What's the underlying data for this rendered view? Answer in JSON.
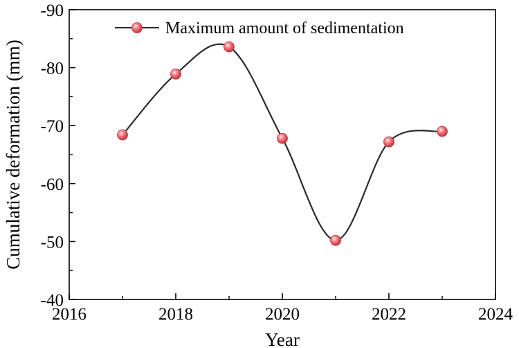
{
  "chart_data": {
    "type": "line",
    "title": "",
    "xlabel": "Year",
    "ylabel": "Cumulative deformation (mm)",
    "xlim": [
      2016,
      2024
    ],
    "ylim": [
      -40,
      -90
    ],
    "y_axis_inverted": true,
    "x_ticks": [
      2016,
      2018,
      2020,
      2022,
      2024
    ],
    "x_tick_labels": [
      "2016",
      "2018",
      "2020",
      "2022",
      "2024"
    ],
    "y_ticks": [
      -40,
      -50,
      -60,
      -70,
      -80,
      -90
    ],
    "y_tick_labels": [
      "-40",
      "-50",
      "-60",
      "-70",
      "-80",
      "-90"
    ],
    "grid": false,
    "legend_position": "top-center",
    "series": [
      {
        "name": "Maximum amount of sedimentation",
        "x": [
          2017,
          2018,
          2019,
          2020,
          2021,
          2022,
          2023
        ],
        "values": [
          -68.4,
          -78.9,
          -83.6,
          -67.8,
          -50.2,
          -67.2,
          -69.0
        ],
        "line_color": "#2b2b2b",
        "marker_color": "#e8606a",
        "marker": "circle",
        "line_style": "smooth"
      }
    ]
  }
}
